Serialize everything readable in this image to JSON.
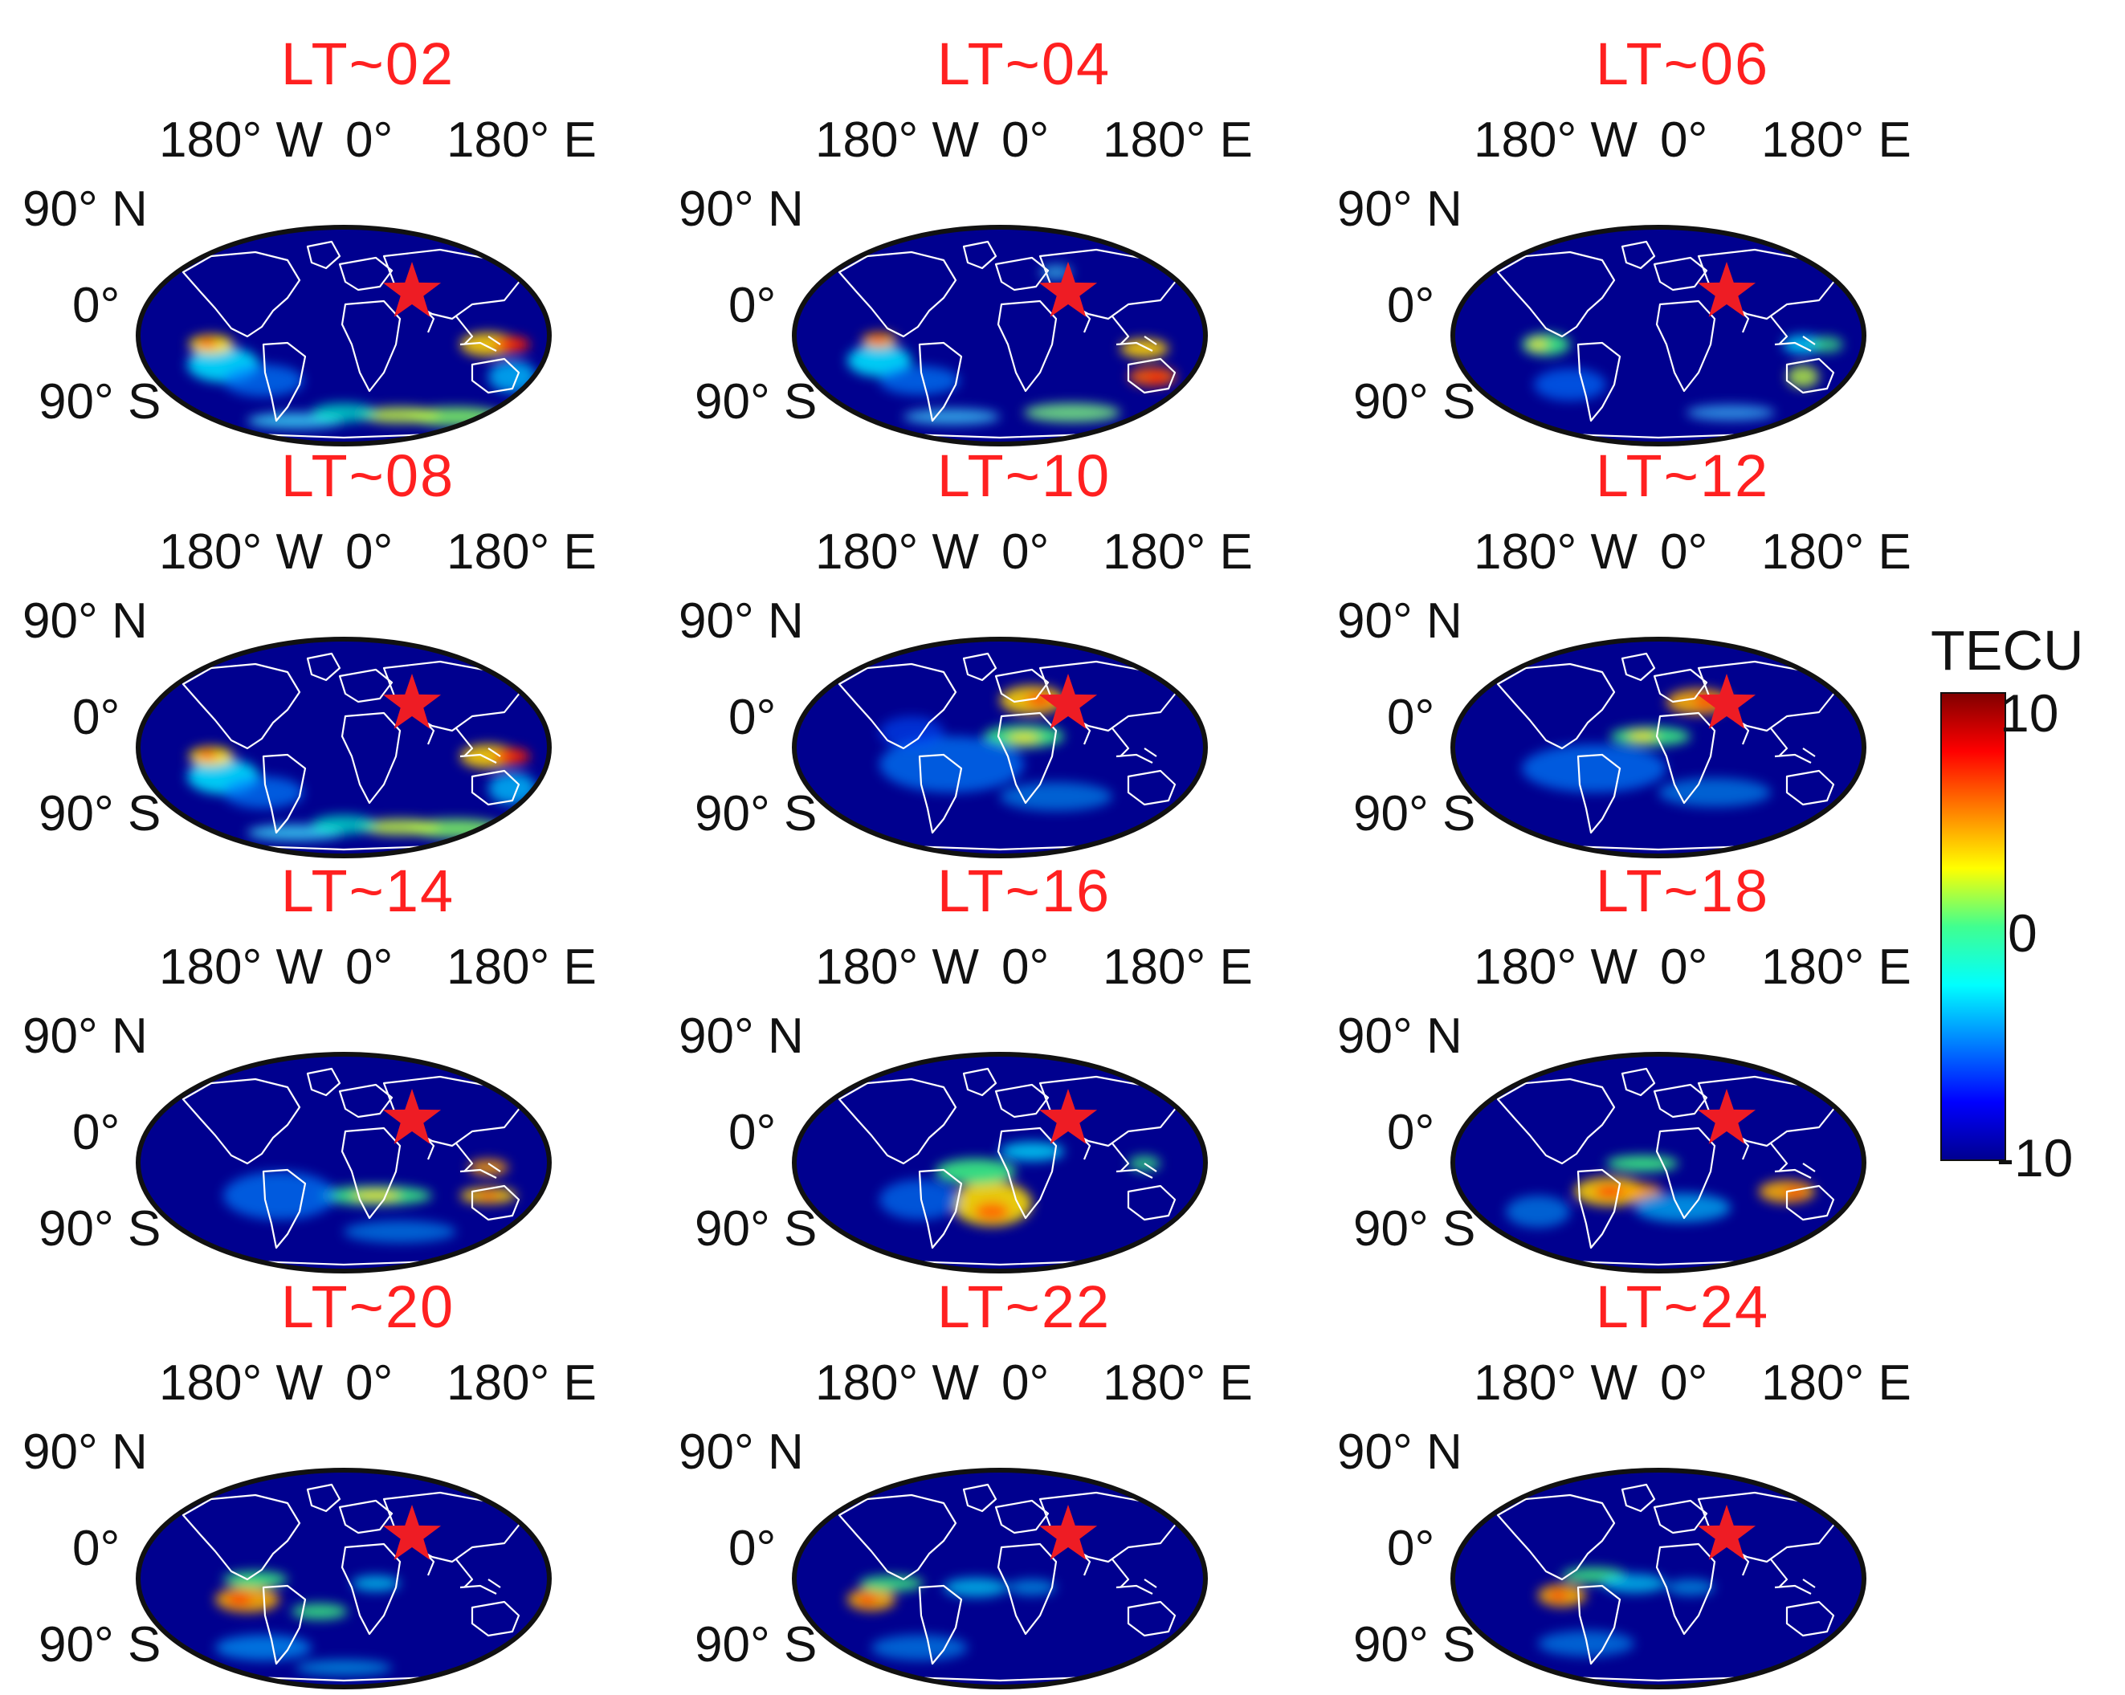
{
  "axis_labels": {
    "lon_west": "180° W",
    "lon_zero": "0°",
    "lon_east": "180° E",
    "lat_north": "90° N",
    "lat_equator": "0°",
    "lat_south": "90° S"
  },
  "colorbar": {
    "title": "TECU",
    "max_label": "10",
    "mid_label": "0",
    "min_label": "-10",
    "colormap": "jet",
    "range": [
      -10,
      10
    ]
  },
  "marker": {
    "symbol": "star",
    "color": "#ee1c24",
    "location": "epicenter over Middle East"
  },
  "colors": {
    "title_red": "#ff2020",
    "ocean_low": "#00008f",
    "outline": "#ffffff"
  },
  "panels": [
    {
      "title": "LT~02"
    },
    {
      "title": "LT~04"
    },
    {
      "title": "LT~06"
    },
    {
      "title": "LT~08"
    },
    {
      "title": "LT~10"
    },
    {
      "title": "LT~12"
    },
    {
      "title": "LT~14"
    },
    {
      "title": "LT~16"
    },
    {
      "title": "LT~18"
    },
    {
      "title": "LT~20"
    },
    {
      "title": "LT~22"
    },
    {
      "title": "LT~24"
    }
  ]
}
